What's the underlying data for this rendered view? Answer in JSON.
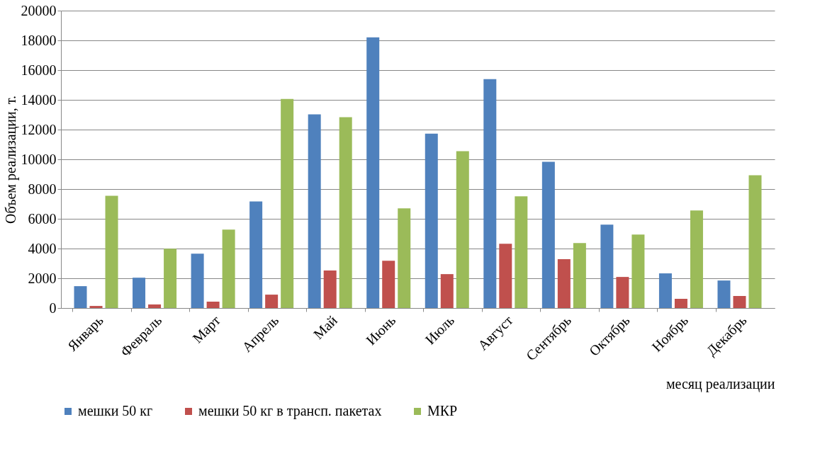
{
  "chart_data": {
    "type": "bar",
    "xlabel": "месяц реализации",
    "ylabel": "Объем реализации, т.",
    "categories": [
      "Январь",
      "Февраль",
      "Март",
      "Апрель",
      "Май",
      "Июнь",
      "Июль",
      "Август",
      "Сентябрь",
      "Октябрь",
      "Ноябрь",
      "Декабрь"
    ],
    "series": [
      {
        "name": "мешки 50 кг",
        "color": "#4f81bd",
        "values": [
          1470,
          2040,
          3660,
          7170,
          13020,
          18200,
          11730,
          15390,
          9830,
          5610,
          2330,
          1850
        ]
      },
      {
        "name": "мешки 50 кг в трансп. пакетах",
        "color": "#c0504d",
        "values": [
          140,
          240,
          430,
          900,
          2520,
          3180,
          2280,
          4320,
          3280,
          2090,
          620,
          810
        ]
      },
      {
        "name": "МКР",
        "color": "#9bbb59",
        "values": [
          7550,
          3990,
          5270,
          14060,
          12830,
          6700,
          10550,
          7510,
          4370,
          4940,
          6560,
          8930
        ]
      }
    ],
    "ylim": [
      0,
      20000
    ],
    "yticks": [
      0,
      2000,
      4000,
      6000,
      8000,
      10000,
      12000,
      14000,
      16000,
      18000,
      20000
    ],
    "grid": "y",
    "legend": "bottom"
  }
}
